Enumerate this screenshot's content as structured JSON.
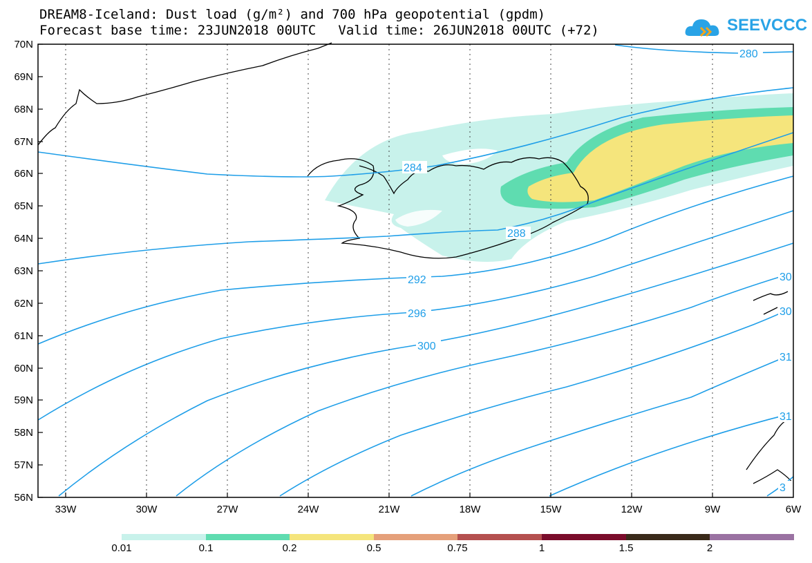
{
  "header": {
    "title_line1": "DREAM8-Iceland: Dust load (g/m²) and 700 hPa geopotential (gpdm)",
    "forecast_base": "Forecast base time: 23JUN2018 00UTC",
    "valid_time": "Valid time: 26JUN2018 00UTC (+72)"
  },
  "logo": {
    "text": "SEEVCCC",
    "icon": "cloud-icon",
    "color": "#29a3e6"
  },
  "map": {
    "lat_labels": [
      "70N",
      "69N",
      "68N",
      "67N",
      "66N",
      "65N",
      "64N",
      "63N",
      "62N",
      "61N",
      "60N",
      "59N",
      "58N",
      "57N",
      "56N"
    ],
    "lon_labels": [
      "33W",
      "30W",
      "27W",
      "24W",
      "21W",
      "18W",
      "15W",
      "12W",
      "9W",
      "6W"
    ],
    "contour_labels": [
      "280",
      "284",
      "288",
      "292",
      "296",
      "300",
      "30",
      "30",
      "31",
      "31",
      "3"
    ],
    "contour_color": "#1e9ee8",
    "dust_colors": [
      "#c8f2eb",
      "#5fdcb0",
      "#f5e57c"
    ]
  },
  "colorbar": {
    "labels": [
      "0.01",
      "0.1",
      "0.2",
      "0.5",
      "0.75",
      "1",
      "1.5",
      "2"
    ],
    "colors": [
      "#c8f2eb",
      "#5fdcb0",
      "#f5e57c",
      "#e5a07a",
      "#b4504f",
      "#7a0c2b",
      "#3a2a1a",
      "#9a72a2"
    ]
  }
}
